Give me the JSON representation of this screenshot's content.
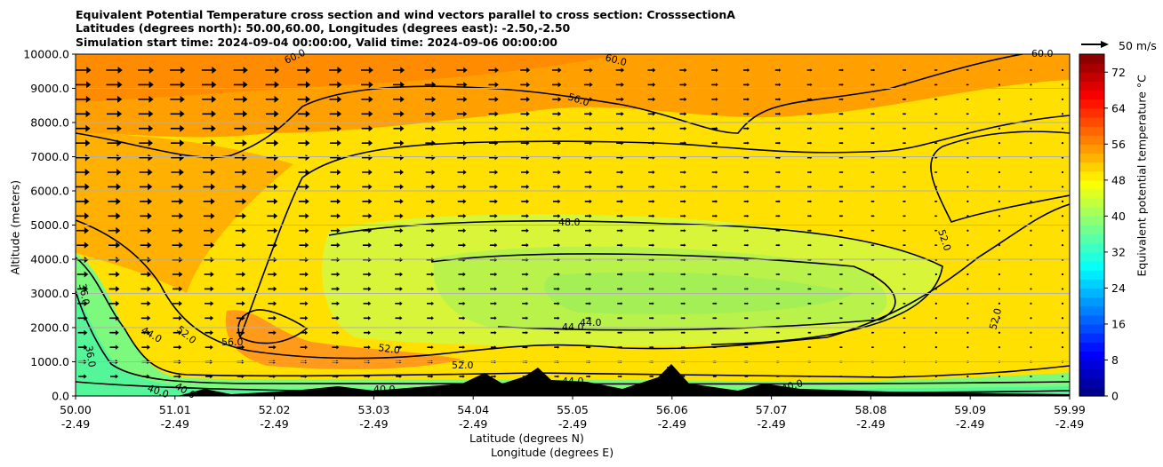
{
  "chart_data": {
    "type": "contour",
    "title_lines": [
      "Equivalent Potential Temperature cross section and wind vectors parallel to cross section: CrosssectionA",
      "Latitudes (degrees north): 50.00,60.00, Longitudes (degrees east): -2.50,-2.50",
      "Simulation start time: 2024-09-04 00:00:00, Valid time: 2024-09-06 00:00:00"
    ],
    "ylabel": "Altitude (meters)",
    "xlabel_line1": "Latitude (degrees N)",
    "xlabel_line2": "Longitude (degrees E)",
    "ylim": [
      0,
      10000
    ],
    "y_ticks": [
      "0.0",
      "1000.0",
      "2000.0",
      "3000.0",
      "4000.0",
      "5000.0",
      "6000.0",
      "7000.0",
      "8000.0",
      "9000.0",
      "10000.0"
    ],
    "x_ticks_lat": [
      "50.00",
      "51.01",
      "52.02",
      "53.03",
      "54.04",
      "55.05",
      "56.06",
      "57.07",
      "58.08",
      "59.09",
      "59.99"
    ],
    "x_ticks_lon": [
      "-2.49",
      "-2.49",
      "-2.49",
      "-2.49",
      "-2.49",
      "-2.49",
      "-2.49",
      "-2.49",
      "-2.49",
      "-2.49",
      "-2.49"
    ],
    "grid": "horizontal",
    "colorbar": {
      "label": "Equivalent potential temperature $^\\circ$C",
      "label_display": "Equivalent potential temperature °C",
      "range": [
        0,
        76
      ],
      "ticks": [
        "0",
        "8",
        "16",
        "24",
        "32",
        "40",
        "48",
        "56",
        "64",
        "72"
      ],
      "colormap": "jet"
    },
    "contour_labels": [
      "60.0",
      "60.0",
      "60.0",
      "56.0",
      "56.0",
      "52.0",
      "52.0",
      "52.0",
      "52.0",
      "52.0",
      "48.0",
      "48.0",
      "44.0",
      "44.0",
      "44.0",
      "44.0",
      "40.0",
      "40.0",
      "40.0",
      "40.0",
      "36.0",
      "36.0"
    ],
    "wind_reference": "50 m/s"
  }
}
